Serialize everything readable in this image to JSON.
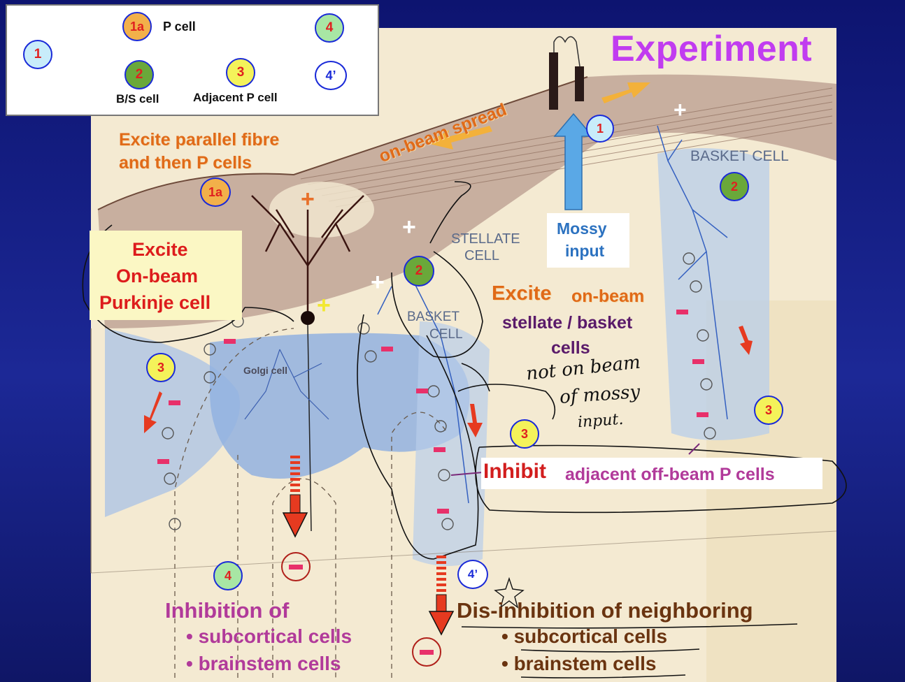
{
  "legend": {
    "step_1": "1",
    "step_1a": "1a",
    "step_2": "2",
    "step_3": "3",
    "step_4": "4",
    "step_4p": "4’",
    "p_cell_label": "P cell",
    "bs_cell_label": "B/S cell",
    "adjacent_p_cell_label": "Adjacent P cell"
  },
  "title": "Experiment",
  "mossy_input": {
    "line1": "Mossy",
    "line2": "input"
  },
  "labels": {
    "on_beam_spread": "on-beam spread",
    "excite_parallel_line1": "Excite parallel fibre",
    "excite_parallel_line2": "and then P cells",
    "excite_onbeam_p_line1": "Excite",
    "excite_onbeam_p_line2": "On-beam",
    "excite_onbeam_p_line3": "Purkinje cell",
    "stellate_cell_line1": "STELLATE",
    "stellate_cell_line2": "CELL",
    "basket_cell_center_line1": "BASKET",
    "basket_cell_center_line2": "CELL",
    "basket_cell_right": "BASKET CELL",
    "golgi_cell": "Golgi cell",
    "excite_word": "Excite",
    "on_beam_word": "on-beam",
    "stellate_basket_line1": "stellate / basket",
    "stellate_basket_line2": "cells",
    "inhibit_word": "Inhibit",
    "adjacent_offbeam": "adjacent off-beam P cells",
    "inhibition_of": "Inhibition of",
    "inh_bullet_1": "• subcortical cells",
    "inh_bullet_2": "• brainstem cells",
    "disinhibition": "Dis-inhibition of neighboring",
    "dis_bullet_1": "• subcortical cells",
    "dis_bullet_2": "• brainstem cells"
  },
  "handwritten": {
    "note_line1": "not on beam",
    "note_line2": "of mossy",
    "note_line3": "input."
  },
  "markers": {
    "plus": "+",
    "minus": "−",
    "m1": "1",
    "m1a": "1a",
    "m2": "2",
    "m3": "3",
    "m4": "4",
    "m4p": "4’"
  },
  "colors": {
    "background": "#1a2590",
    "tissue": "#f4ead2",
    "molecular_layer": "#b89a8a",
    "granular_blue": "#9db8e0",
    "arrow_dark_red": "#7a1e12",
    "arrow_red": "#e63a20",
    "arrow_orange": "#f3b13a",
    "mossy_arrow": "#5aa8e6",
    "title_magenta": "#c13cf0",
    "marker_blue_border": "#1a2ad8",
    "minus_pink": "#e8306a"
  }
}
